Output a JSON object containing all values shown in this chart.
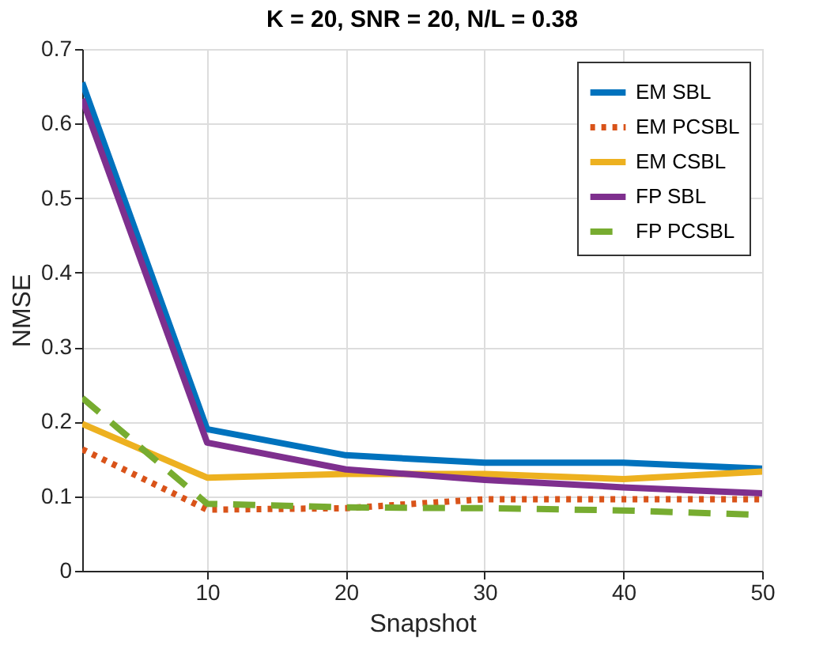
{
  "chart_data": {
    "type": "line",
    "title": "K = 20, SNR = 20, N/L = 0.38",
    "xlabel": "Snapshot",
    "ylabel": "NMSE",
    "x": [
      1,
      10,
      20,
      30,
      40,
      50
    ],
    "series": [
      {
        "name": "EM SBL",
        "color": "#0072bd",
        "line_style": "solid",
        "values": [
          0.655,
          0.19,
          0.155,
          0.145,
          0.145,
          0.137
        ]
      },
      {
        "name": "EM PCSBL",
        "color": "#d95319",
        "line_style": "dotted",
        "values": [
          0.163,
          0.082,
          0.084,
          0.096,
          0.096,
          0.096
        ]
      },
      {
        "name": "EM CSBL",
        "color": "#edb120",
        "line_style": "solid",
        "values": [
          0.197,
          0.125,
          0.13,
          0.13,
          0.123,
          0.133
        ]
      },
      {
        "name": "FP SBL",
        "color": "#7e2f8e",
        "line_style": "solid",
        "values": [
          0.633,
          0.172,
          0.136,
          0.122,
          0.112,
          0.104
        ]
      },
      {
        "name": "FP PCSBL",
        "color": "#77ac30",
        "line_style": "dashed",
        "values": [
          0.232,
          0.09,
          0.085,
          0.084,
          0.081,
          0.075
        ]
      }
    ],
    "xlim": [
      1,
      50
    ],
    "xticks": [
      10,
      20,
      30,
      40,
      50
    ],
    "ylim": [
      0,
      0.7
    ],
    "yticks": [
      0,
      0.1,
      0.2,
      0.3,
      0.4,
      0.5,
      0.6,
      0.7
    ],
    "grid": true,
    "legend": "top right",
    "marker": "none"
  }
}
